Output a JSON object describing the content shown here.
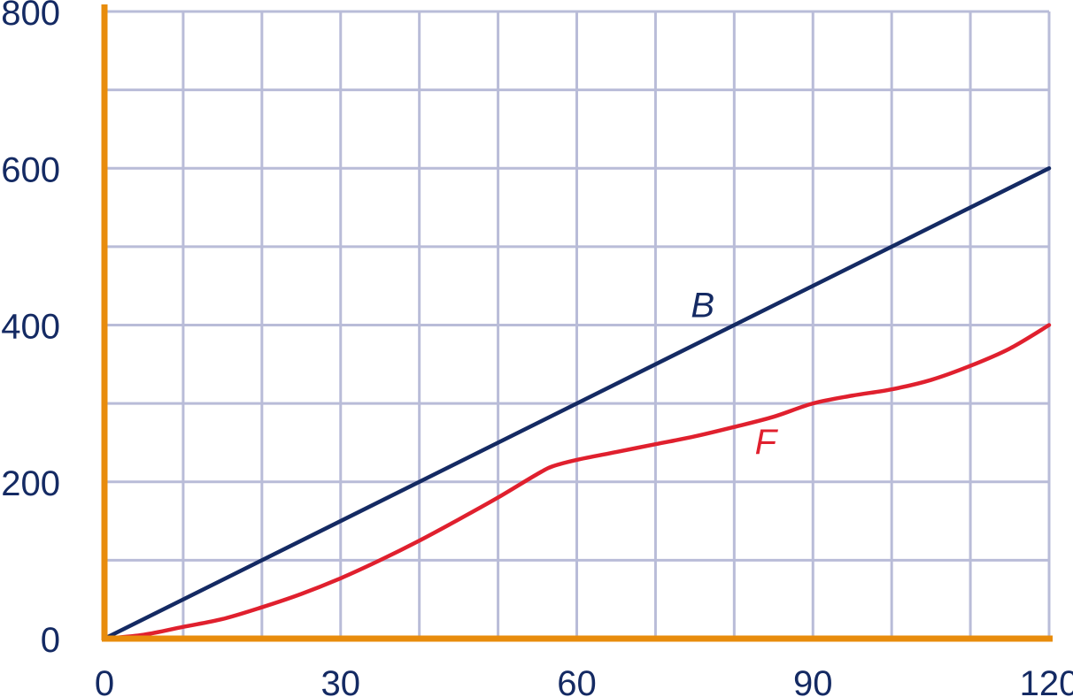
{
  "chart_data": {
    "type": "line",
    "title": "",
    "xlabel": "",
    "ylabel": "",
    "xlim": [
      0,
      120
    ],
    "ylim": [
      0,
      800
    ],
    "grid": true,
    "x_ticks": [
      0,
      30,
      60,
      90,
      120
    ],
    "y_ticks": [
      0,
      200,
      400,
      600,
      800
    ],
    "x_tick_labels": [
      "0",
      "30",
      "60",
      "90",
      "120"
    ],
    "y_tick_labels": [
      "0",
      "200",
      "400",
      "600",
      "800"
    ],
    "series": [
      {
        "name": "B",
        "color": "#142a63",
        "x": [
          0,
          120
        ],
        "y": [
          0,
          600
        ]
      },
      {
        "name": "F",
        "color": "#e0202e",
        "x": [
          0,
          5,
          10,
          15,
          20,
          25,
          30,
          35,
          40,
          45,
          50,
          55,
          57,
          60,
          65,
          70,
          75,
          80,
          85,
          90,
          95,
          100,
          105,
          110,
          115,
          120
        ],
        "y": [
          0,
          5,
          15,
          25,
          40,
          57,
          77,
          100,
          125,
          152,
          180,
          210,
          220,
          228,
          238,
          248,
          258,
          270,
          283,
          300,
          310,
          318,
          330,
          348,
          370,
          400
        ]
      }
    ]
  },
  "colors": {
    "grid": "#b9bcd8",
    "axis": "#e88c0c",
    "text": "#142a63"
  }
}
